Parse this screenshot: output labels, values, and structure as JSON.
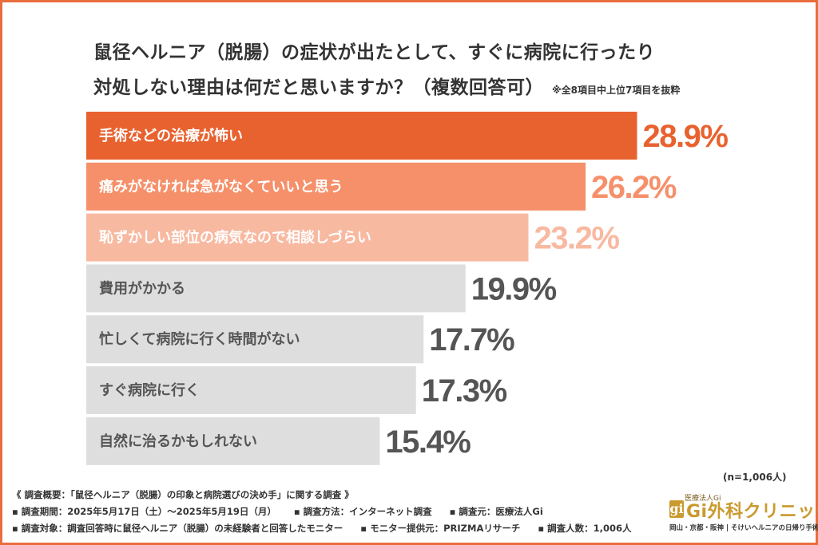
{
  "title_line1": "鼠径ヘルニア（脱腸）の症状が出たとして、すぐに病院に行ったり",
  "title_line2": "対処しない理由は何だと思いますか？（複数回答可）",
  "title_note": "※全8項目中上位7項目を抜粋",
  "sample_size": "(n=1,006人)",
  "colors": {
    "frame": "#ea6d3e",
    "bar1": "#e8622f",
    "bar2": "#f5906a",
    "bar3": "#f8b9a1",
    "bar_gray": "#dedede",
    "text_dark": "#555555"
  },
  "chart_data": {
    "type": "bar",
    "orientation": "horizontal",
    "categories": [
      "手術などの治療が怖い",
      "痛みがなければ急がなくていいと思う",
      "恥ずかしい部位の病気なので相談しづらい",
      "費用がかかる",
      "忙しくて病院に行く時間がない",
      "すぐ病院に行く",
      "自然に治るかもしれない"
    ],
    "values": [
      28.9,
      26.2,
      23.2,
      19.9,
      17.7,
      17.3,
      15.4
    ],
    "value_labels": [
      "28.9%",
      "26.2%",
      "23.2%",
      "19.9%",
      "17.7%",
      "17.3%",
      "15.4%"
    ],
    "unit": "%",
    "xlim": [
      0,
      35
    ],
    "grid": false,
    "legend": "none"
  },
  "footer": {
    "survey_title": "《 調査概要：「鼠径ヘルニア（脱腸）の印象と病院選びの決め手」に関する調査 》",
    "period": "▪ 調査期間：2025年5月17日（土）～2025年5月19日（月）",
    "method": "▪ 調査方法：インターネット調査",
    "organizer": "▪ 調査元：医療法人Gi",
    "target": "▪ 調査対象：調査回答時に鼠径ヘルニア（脱腸）の未経験者と回答したモニター",
    "provider": "▪ モニター提供元：PRIZMAリサーチ",
    "count": "▪ 調査人数：1,006人"
  },
  "logo": {
    "small_text": "医療法人Gi",
    "mark": "gi",
    "name": "Gi外科クリニック",
    "sub": "岡山・京都・阪神 | そけいヘルニアの日帰り手術"
  }
}
